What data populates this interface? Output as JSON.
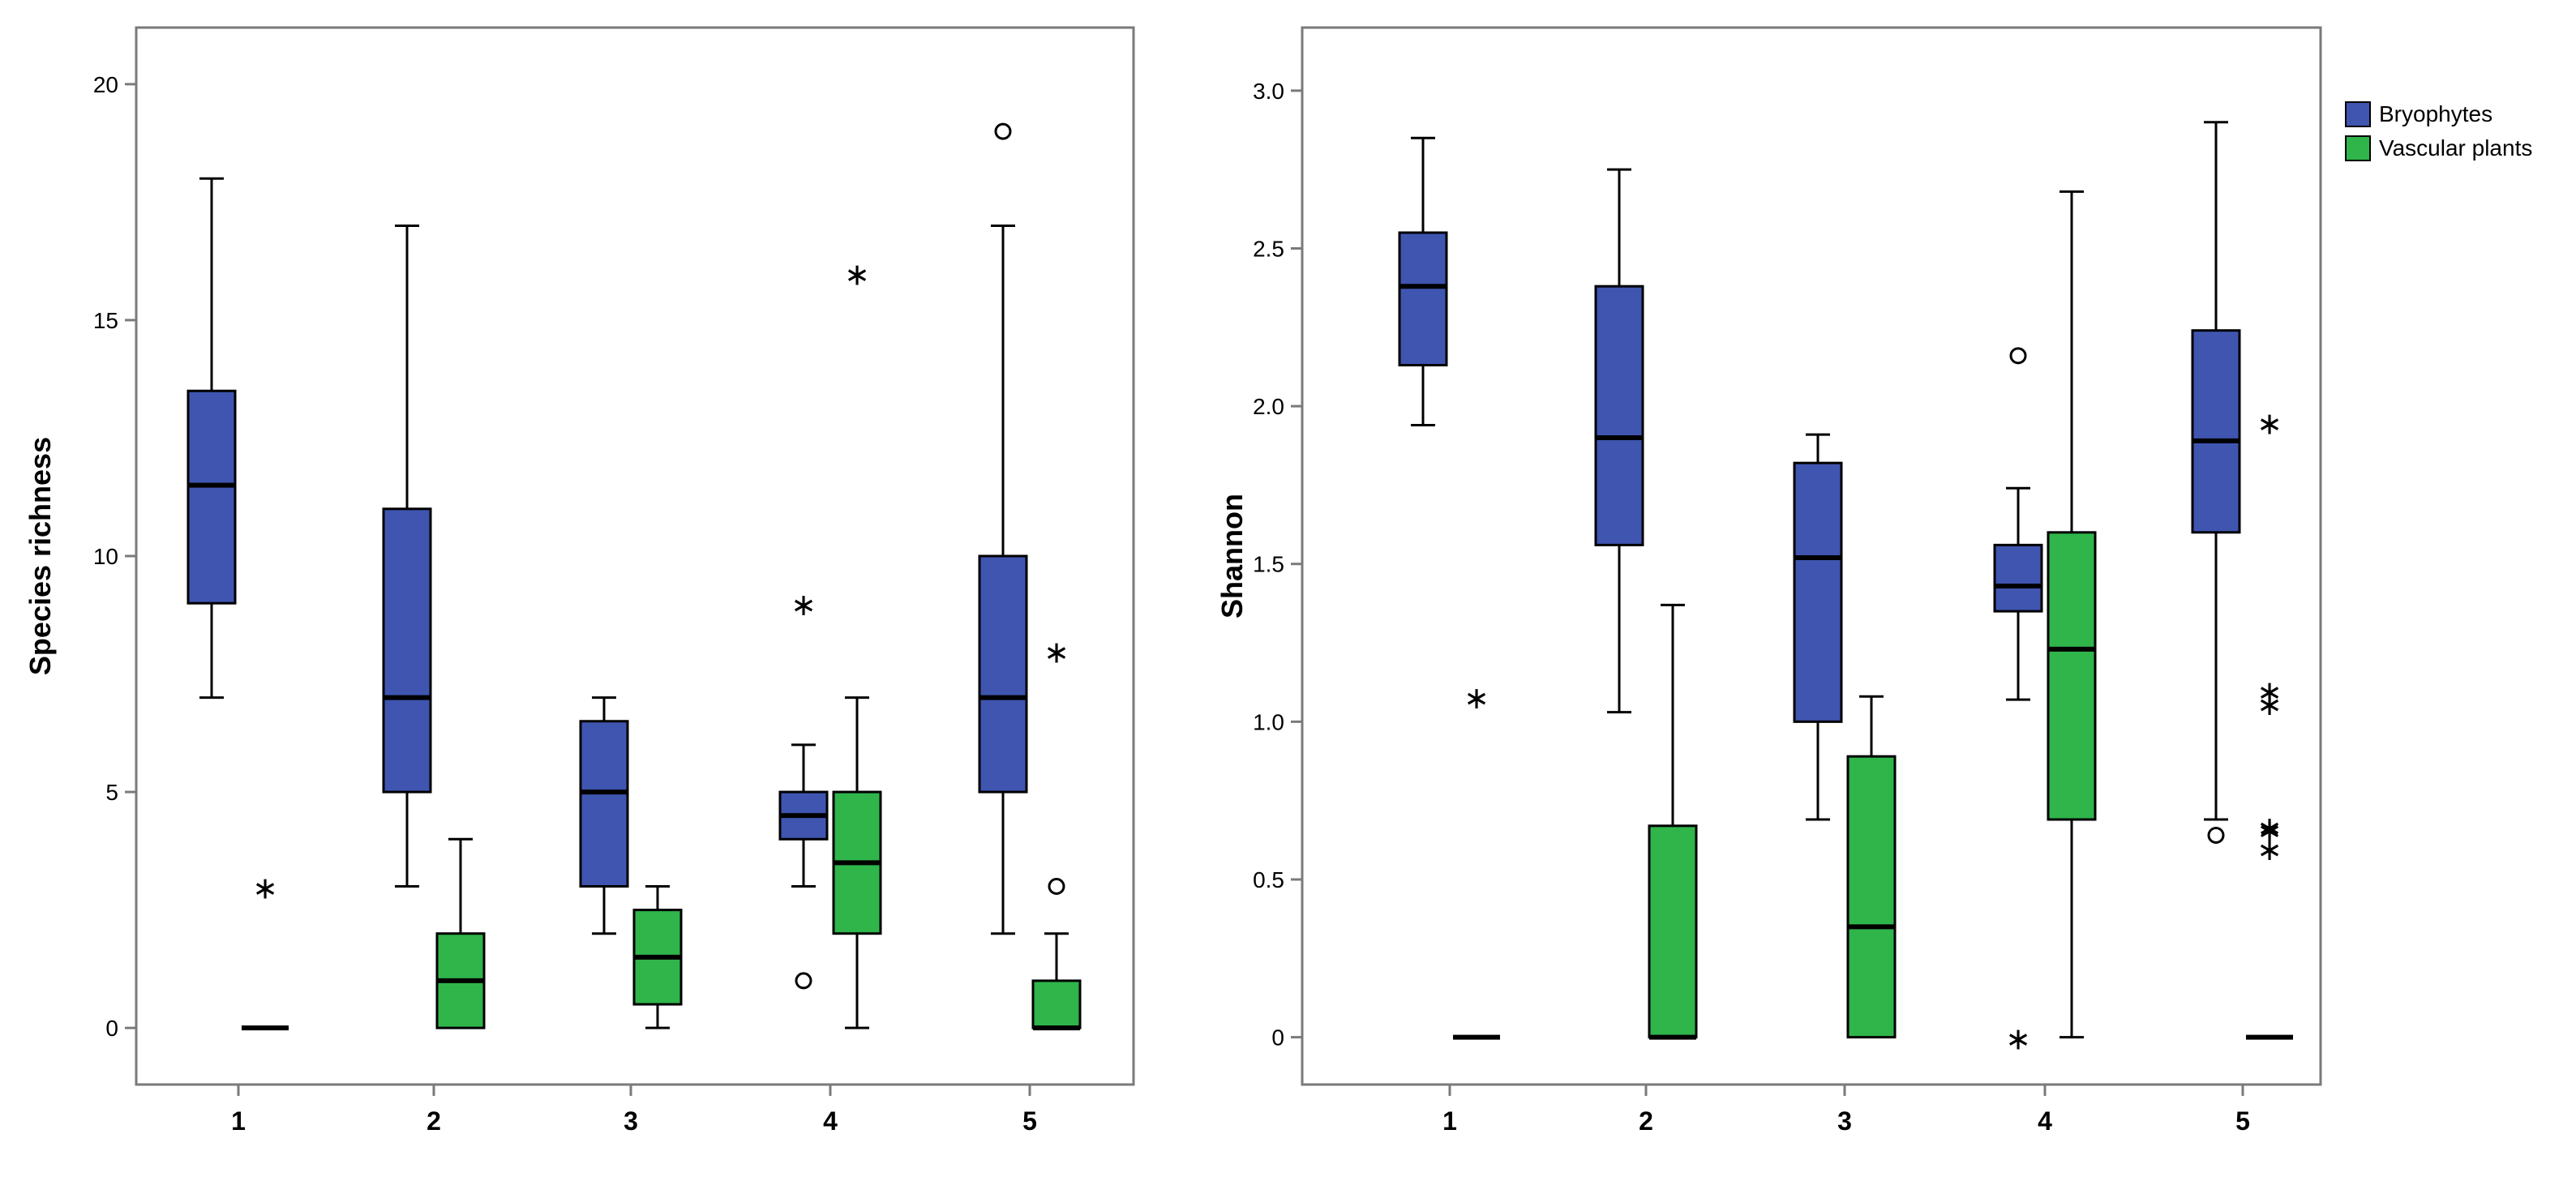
{
  "colors": {
    "bryophytes": "#3f55b0",
    "vascular": "#2fb54a",
    "outline": "#000000",
    "frame": "#7a7a7a",
    "background": "#ffffff"
  },
  "legend": {
    "bryophytes_label": "Bryophytes",
    "vascular_label": "Vascular plants"
  },
  "chart_data": [
    {
      "type": "box",
      "title": "",
      "xlabel": "",
      "ylabel": "Species richness",
      "categories": [
        "1",
        "2",
        "3",
        "4",
        "5"
      ],
      "ylim": [
        -1.2,
        21.2
      ],
      "yticks": [
        0,
        5,
        10,
        15,
        20
      ],
      "ytick_labels": [
        "0",
        "5",
        "10",
        "15",
        "20"
      ],
      "series": [
        {
          "name": "Bryophytes",
          "boxes": [
            {
              "category": "1",
              "min": 7,
              "q1": 9,
              "median": 11.5,
              "q3": 13.5,
              "max": 18,
              "outliers": [],
              "extremes": []
            },
            {
              "category": "2",
              "min": 3,
              "q1": 5,
              "median": 7,
              "q3": 11,
              "max": 17,
              "outliers": [],
              "extremes": []
            },
            {
              "category": "3",
              "min": 2,
              "q1": 3,
              "median": 5,
              "q3": 6.5,
              "max": 7,
              "outliers": [],
              "extremes": []
            },
            {
              "category": "4",
              "min": 3,
              "q1": 4,
              "median": 4.5,
              "q3": 5,
              "max": 6,
              "outliers": [
                1
              ],
              "extremes": [
                9
              ]
            },
            {
              "category": "5",
              "min": 2,
              "q1": 5,
              "median": 7,
              "q3": 10,
              "max": 17,
              "outliers": [
                19
              ],
              "extremes": []
            }
          ]
        },
        {
          "name": "Vascular plants",
          "boxes": [
            {
              "category": "1",
              "min": 0,
              "q1": 0,
              "median": 0,
              "q3": 0,
              "max": 0,
              "outliers": [],
              "extremes": [
                3
              ]
            },
            {
              "category": "2",
              "min": 0,
              "q1": 0,
              "median": 1,
              "q3": 2,
              "max": 4,
              "outliers": [],
              "extremes": []
            },
            {
              "category": "3",
              "min": 0,
              "q1": 0.5,
              "median": 1.5,
              "q3": 2.5,
              "max": 3,
              "outliers": [],
              "extremes": []
            },
            {
              "category": "4",
              "min": 0,
              "q1": 2,
              "median": 3.5,
              "q3": 5,
              "max": 7,
              "outliers": [],
              "extremes": [
                16
              ]
            },
            {
              "category": "5",
              "min": 0,
              "q1": 0,
              "median": 0,
              "q3": 1,
              "max": 2,
              "outliers": [
                3
              ],
              "extremes": [
                8
              ]
            }
          ]
        }
      ]
    },
    {
      "type": "box",
      "title": "",
      "xlabel": "",
      "ylabel": "Shannon",
      "categories": [
        "1",
        "2",
        "3",
        "4",
        "5"
      ],
      "ylim": [
        -0.15,
        3.2
      ],
      "yticks": [
        0,
        0.5,
        1.0,
        1.5,
        2.0,
        2.5,
        3.0
      ],
      "ytick_labels": [
        "0",
        "0.5",
        "1.0",
        "1.5",
        "2.0",
        "2.5",
        "3.0"
      ],
      "series": [
        {
          "name": "Bryophytes",
          "boxes": [
            {
              "category": "1",
              "min": 1.94,
              "q1": 2.13,
              "median": 2.38,
              "q3": 2.55,
              "max": 2.85,
              "outliers": [],
              "extremes": []
            },
            {
              "category": "2",
              "min": 1.03,
              "q1": 1.56,
              "median": 1.9,
              "q3": 2.38,
              "max": 2.75,
              "outliers": [],
              "extremes": []
            },
            {
              "category": "3",
              "min": 0.69,
              "q1": 1.0,
              "median": 1.52,
              "q3": 1.82,
              "max": 1.91,
              "outliers": [],
              "extremes": []
            },
            {
              "category": "4",
              "min": 1.07,
              "q1": 1.35,
              "median": 1.43,
              "q3": 1.56,
              "max": 1.74,
              "outliers": [
                2.16
              ],
              "extremes": [
                0
              ]
            },
            {
              "category": "5",
              "min": 0.69,
              "q1": 1.6,
              "median": 1.89,
              "q3": 2.24,
              "max": 2.9,
              "outliers": [
                0.64
              ],
              "extremes": []
            }
          ]
        },
        {
          "name": "Vascular plants",
          "boxes": [
            {
              "category": "1",
              "min": 0,
              "q1": 0,
              "median": 0,
              "q3": 0,
              "max": 0,
              "outliers": [],
              "extremes": [
                1.08
              ]
            },
            {
              "category": "2",
              "min": 0,
              "q1": 0,
              "median": 0,
              "q3": 0.67,
              "max": 1.37,
              "outliers": [],
              "extremes": []
            },
            {
              "category": "3",
              "min": 0,
              "q1": 0,
              "median": 0.35,
              "q3": 0.89,
              "max": 1.08,
              "outliers": [],
              "extremes": []
            },
            {
              "category": "4",
              "min": 0,
              "q1": 0.69,
              "median": 1.23,
              "q3": 1.6,
              "max": 2.68,
              "outliers": [],
              "extremes": []
            },
            {
              "category": "5",
              "min": 0,
              "q1": 0,
              "median": 0,
              "q3": 0,
              "max": 0,
              "outliers": [],
              "extremes": [
                1.95,
                1.1,
                1.06,
                0.67,
                0.66,
                0.6
              ]
            }
          ]
        }
      ]
    }
  ]
}
